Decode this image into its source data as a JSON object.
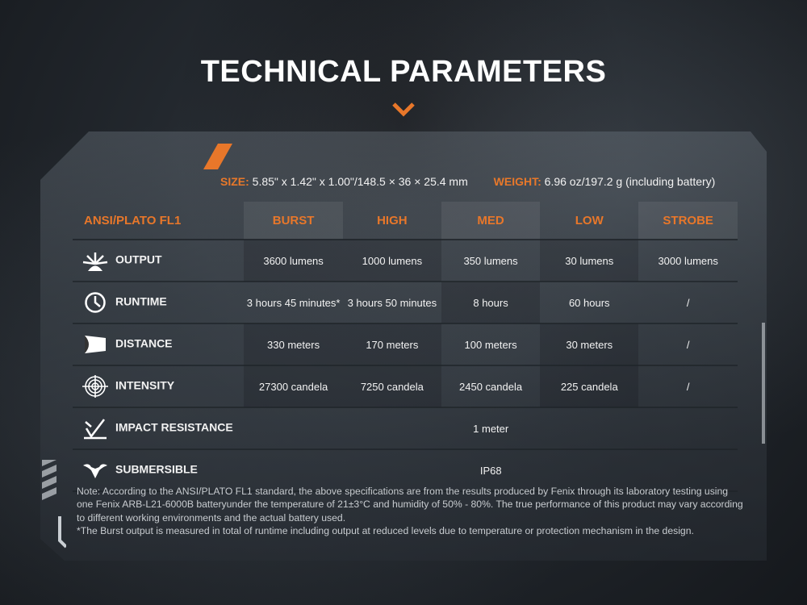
{
  "title": "TECHNICAL PARAMETERS",
  "colors": {
    "accent": "#e8772a"
  },
  "specs": {
    "size_label": "SIZE:",
    "size_value": "5.85\" x 1.42\" x 1.00\"/148.5 × 36 × 25.4 mm",
    "weight_label": "WEIGHT:",
    "weight_value": "6.96 oz/197.2 g (including battery)"
  },
  "table": {
    "headers": [
      "ANSI/PLATO FL1",
      "BURST",
      "HIGH",
      "MED",
      "LOW",
      "STROBE"
    ],
    "rows": [
      {
        "icon": "burst-light-icon",
        "label": "OUTPUT",
        "cells": [
          "3600 lumens",
          "1000 lumens",
          "350 lumens",
          "30 lumens",
          "3000 lumens"
        ]
      },
      {
        "icon": "clock-icon",
        "label": "RUNTIME",
        "cells": [
          "3 hours 45 minutes*",
          "3 hours 50 minutes",
          "8 hours",
          "60 hours",
          "/"
        ]
      },
      {
        "icon": "beam-distance-icon",
        "label": "DISTANCE",
        "cells": [
          "330 meters",
          "170 meters",
          "100 meters",
          "30 meters",
          "/"
        ]
      },
      {
        "icon": "target-icon",
        "label": "INTENSITY",
        "cells": [
          "27300 candela",
          "7250 candela",
          "2450 candela",
          "225 candela",
          "/"
        ]
      },
      {
        "icon": "impact-icon",
        "label": "IMPACT RESISTANCE",
        "value": "1 meter"
      },
      {
        "icon": "water-icon",
        "label": "SUBMERSIBLE",
        "value": "IP68"
      }
    ]
  },
  "notes": [
    "Note: According to the ANSI/PLATO FL1 standard, the above specifications are from the results produced by Fenix through its laboratory testing using one Fenix ARB-L21-6000B batteryunder the temperature of 21±3°C and humidity of 50% - 80%. The true performance of this product may vary according to different working environments and the actual battery used.",
    "*The Burst output is measured in total of runtime including output at reduced levels due to temperature or protection mechanism in the design."
  ]
}
